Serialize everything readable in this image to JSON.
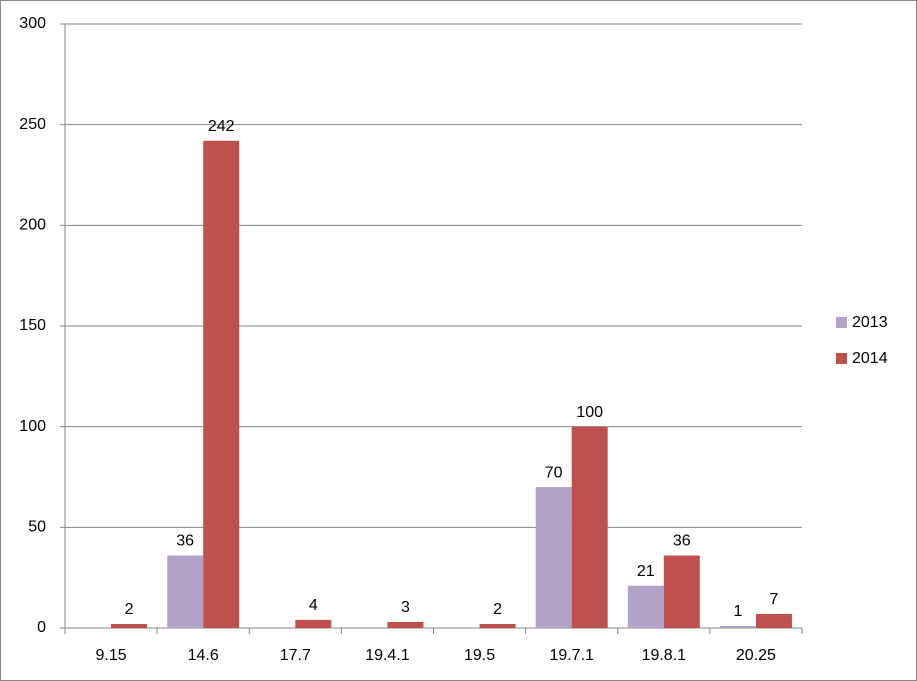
{
  "chart_data": {
    "type": "bar",
    "categories": [
      "9.15",
      "14.6",
      "17.7",
      "19.4.1",
      "19.5",
      "19.7.1",
      "19.8.1",
      "20.25"
    ],
    "series": [
      {
        "name": "2013",
        "color": "#b3a2c7",
        "values": [
          null,
          36,
          null,
          null,
          null,
          70,
          21,
          1
        ]
      },
      {
        "name": "2014",
        "color": "#c0504d",
        "values": [
          2,
          242,
          4,
          3,
          2,
          100,
          36,
          7
        ]
      }
    ],
    "ylim": [
      0,
      300
    ],
    "yticks": [
      0,
      50,
      100,
      150,
      200,
      250,
      300
    ],
    "grid": true,
    "legend": "right"
  }
}
